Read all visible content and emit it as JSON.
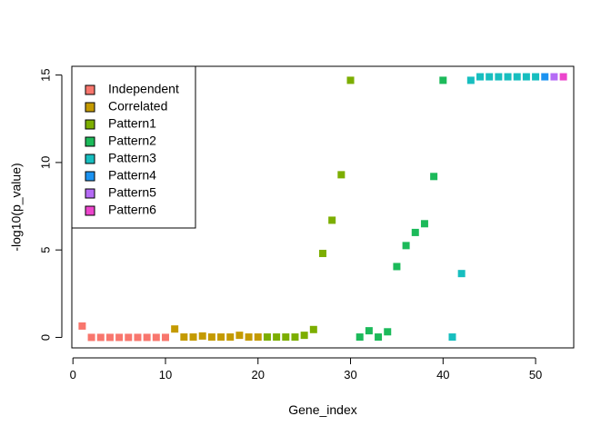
{
  "chart_data": {
    "type": "scatter",
    "title": "",
    "xlabel": "Gene_index",
    "ylabel": "-log10(p_value)",
    "xlim": [
      -0.12,
      54.12
    ],
    "ylim": [
      -0.6,
      15.5
    ],
    "xticks": [
      0,
      10,
      20,
      30,
      40,
      50
    ],
    "yticks": [
      0,
      5,
      10,
      15
    ],
    "grid": false,
    "marker": "square",
    "legend": {
      "position": "top-left",
      "entries": [
        {
          "name": "Independent",
          "color": "#F8766D"
        },
        {
          "name": "Correlated",
          "color": "#C49A00"
        },
        {
          "name": "Pattern1",
          "color": "#7CAE00"
        },
        {
          "name": "Pattern2",
          "color": "#1CBA5A"
        },
        {
          "name": "Pattern3",
          "color": "#17BEBF"
        },
        {
          "name": "Pattern4",
          "color": "#1C93F1"
        },
        {
          "name": "Pattern5",
          "color": "#B56BF5"
        },
        {
          "name": "Pattern6",
          "color": "#EC45CC"
        }
      ]
    },
    "series": [
      {
        "name": "Independent",
        "color": "#F8766D",
        "x": [
          1,
          2,
          3,
          4,
          5,
          6,
          7,
          8,
          9,
          10
        ],
        "y": [
          0.65,
          0,
          0,
          0,
          0,
          0,
          0,
          0,
          0,
          0
        ]
      },
      {
        "name": "Correlated",
        "color": "#C49A00",
        "x": [
          11,
          12,
          13,
          14,
          15,
          16,
          17,
          18,
          19,
          20
        ],
        "y": [
          0.48,
          0.02,
          0.02,
          0.08,
          0.02,
          0.02,
          0.02,
          0.12,
          0.02,
          0.02
        ]
      },
      {
        "name": "Pattern1",
        "color": "#7CAE00",
        "x": [
          21,
          22,
          23,
          24,
          25,
          26,
          27,
          28,
          29,
          30
        ],
        "y": [
          0.02,
          0.02,
          0.02,
          0.02,
          0.12,
          0.45,
          4.8,
          6.7,
          9.3,
          14.7
        ]
      },
      {
        "name": "Pattern2",
        "color": "#1CBA5A",
        "x": [
          31,
          32,
          33,
          34,
          35,
          36,
          37,
          38,
          39,
          40
        ],
        "y": [
          0.02,
          0.38,
          0.02,
          0.32,
          4.05,
          5.25,
          6.0,
          6.5,
          9.2,
          14.7
        ]
      },
      {
        "name": "Pattern3",
        "color": "#17BEBF",
        "x": [
          41,
          42,
          43,
          44,
          45,
          46,
          47,
          48,
          49,
          50
        ],
        "y": [
          0.02,
          3.65,
          14.7,
          14.9,
          14.9,
          14.9,
          14.9,
          14.9,
          14.9,
          14.9
        ]
      },
      {
        "name": "Pattern4",
        "color": "#1C93F1",
        "x": [
          51
        ],
        "y": [
          14.9
        ]
      },
      {
        "name": "Pattern5",
        "color": "#B56BF5",
        "x": [
          52
        ],
        "y": [
          14.9
        ]
      },
      {
        "name": "Pattern6",
        "color": "#EC45CC",
        "x": [
          53
        ],
        "y": [
          14.9
        ]
      }
    ]
  }
}
